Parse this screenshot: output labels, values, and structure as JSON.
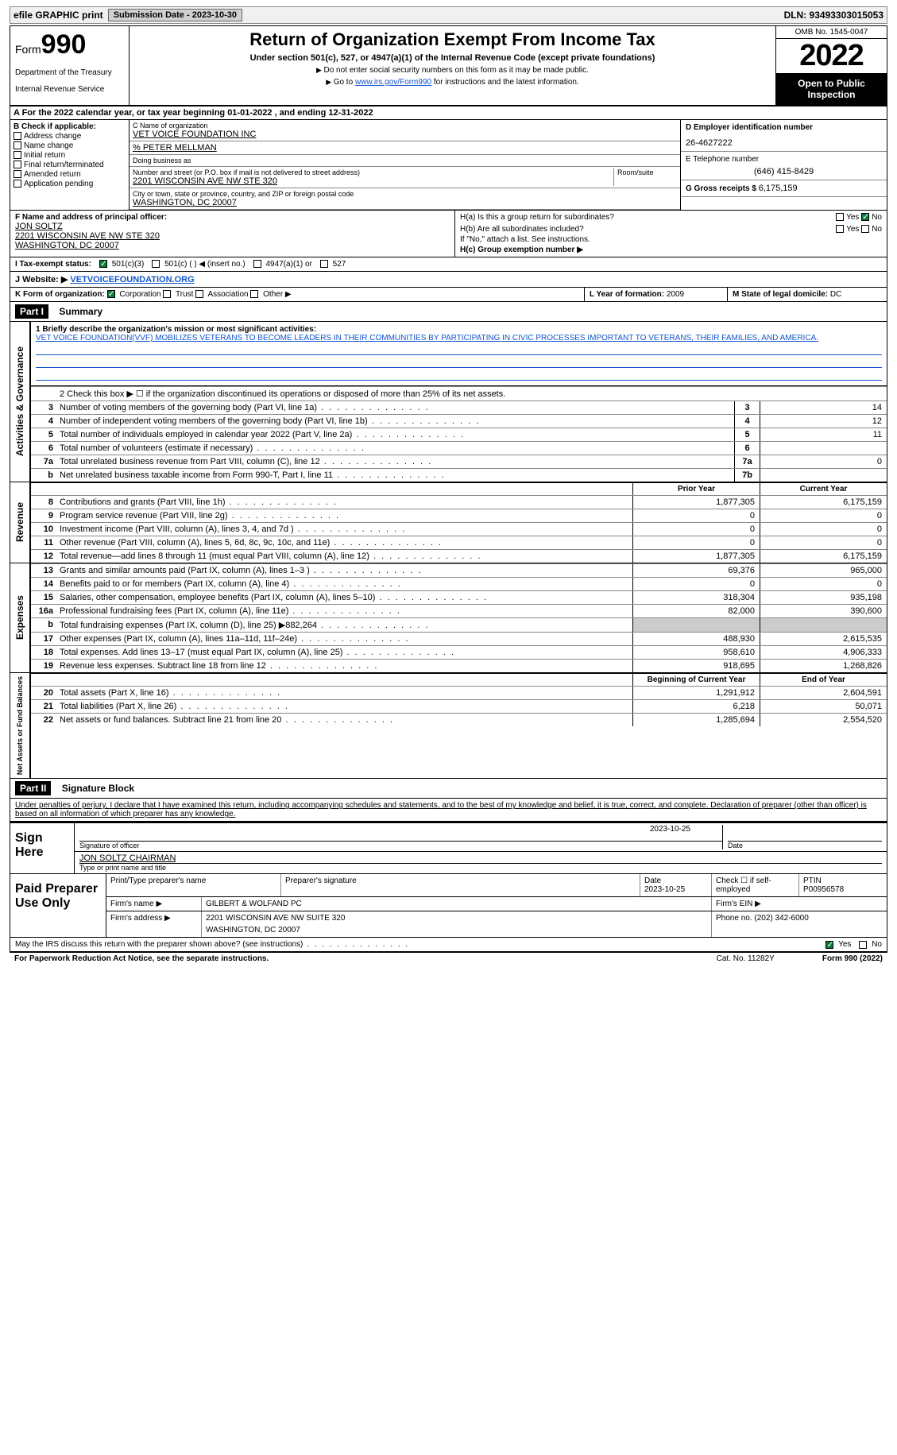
{
  "topbar": {
    "efile": "efile GRAPHIC print",
    "subdate_lbl": "Submission Date - 2023-10-30",
    "dln": "DLN: 93493303015053"
  },
  "header": {
    "form": "Form",
    "formnum": "990",
    "dept": "Department of the Treasury",
    "irs": "Internal Revenue Service",
    "title": "Return of Organization Exempt From Income Tax",
    "sub1": "Under section 501(c), 527, or 4947(a)(1) of the Internal Revenue Code (except private foundations)",
    "sub2": "Do not enter social security numbers on this form as it may be made public.",
    "sub3": "Go to",
    "sub3_link": "www.irs.gov/Form990",
    "sub3_rest": "for instructions and the latest information.",
    "omb": "OMB No. 1545-0047",
    "year": "2022",
    "open": "Open to Public Inspection"
  },
  "rowA": "A For the 2022 calendar year, or tax year beginning 01-01-2022   , and ending 12-31-2022",
  "colB": {
    "lbl": "B Check if applicable:",
    "opts": [
      "Address change",
      "Name change",
      "Initial return",
      "Final return/terminated",
      "Amended return",
      "Application pending"
    ]
  },
  "colC": {
    "name_lbl": "C Name of organization",
    "name": "VET VOICE FOUNDATION INC",
    "care": "% PETER MELLMAN",
    "dba_lbl": "Doing business as",
    "addr_lbl": "Number and street (or P.O. box if mail is not delivered to street address)",
    "room_lbl": "Room/suite",
    "addr": "2201 WISCONSIN AVE NW STE 320",
    "city_lbl": "City or town, state or province, country, and ZIP or foreign postal code",
    "city": "WASHINGTON, DC  20007"
  },
  "colD": {
    "ein_lbl": "D Employer identification number",
    "ein": "26-4627222",
    "tel_lbl": "E Telephone number",
    "tel": "(646) 415-8429",
    "gross_lbl": "G Gross receipts $",
    "gross": "6,175,159"
  },
  "rowF": {
    "lbl": "F  Name and address of principal officer:",
    "name": "JON SOLTZ",
    "addr": "2201 WISCONSIN AVE NW STE 320",
    "city": "WASHINGTON, DC  20007"
  },
  "rowH": {
    "ha": "H(a)  Is this a group return for subordinates?",
    "hb": "H(b)  Are all subordinates included?",
    "hb_note": "If \"No,\" attach a list. See instructions.",
    "hc": "H(c)  Group exemption number ▶"
  },
  "rowI": {
    "lbl": "I    Tax-exempt status:",
    "c3": "501(c)(3)",
    "c": "501(c) (  ) ◀ (insert no.)",
    "a1": "4947(a)(1) or",
    "s527": "527"
  },
  "rowJ": {
    "lbl": "J   Website: ▶",
    "val": "VETVOICEFOUNDATION.ORG"
  },
  "rowK": {
    "lbl": "K Form of organization:",
    "opts": [
      "Corporation",
      "Trust",
      "Association",
      "Other ▶"
    ],
    "l_lbl": "L Year of formation:",
    "l_val": "2009",
    "m_lbl": "M State of legal domicile:",
    "m_val": "DC"
  },
  "part1": {
    "hdr": "Part I",
    "title": "Summary",
    "mission_lbl": "1  Briefly describe the organization's mission or most significant activities:",
    "mission": "VET VOICE FOUNDATION(VVF) MOBILIZES VETERANS TO BECOME LEADERS IN THEIR COMMUNITIES BY PARTICIPATING IN CIVIC PROCESSES IMPORTANT TO VETERANS, THEIR FAMILIES, AND AMERICA.",
    "line2": "2   Check this box ▶ ☐  if the organization discontinued its operations or disposed of more than 25% of its net assets.",
    "gov_lines": [
      {
        "n": "3",
        "d": "Number of voting members of the governing body (Part VI, line 1a)",
        "box": "3",
        "v": "14"
      },
      {
        "n": "4",
        "d": "Number of independent voting members of the governing body (Part VI, line 1b)",
        "box": "4",
        "v": "12"
      },
      {
        "n": "5",
        "d": "Total number of individuals employed in calendar year 2022 (Part V, line 2a)",
        "box": "5",
        "v": "11"
      },
      {
        "n": "6",
        "d": "Total number of volunteers (estimate if necessary)",
        "box": "6",
        "v": ""
      },
      {
        "n": "7a",
        "d": "Total unrelated business revenue from Part VIII, column (C), line 12",
        "box": "7a",
        "v": "0"
      },
      {
        "n": "b",
        "d": "Net unrelated business taxable income from Form 990-T, Part I, line 11",
        "box": "7b",
        "v": ""
      }
    ],
    "rev_hdr": {
      "py": "Prior Year",
      "cy": "Current Year"
    },
    "rev_lines": [
      {
        "n": "8",
        "d": "Contributions and grants (Part VIII, line 1h)",
        "py": "1,877,305",
        "cy": "6,175,159"
      },
      {
        "n": "9",
        "d": "Program service revenue (Part VIII, line 2g)",
        "py": "0",
        "cy": "0"
      },
      {
        "n": "10",
        "d": "Investment income (Part VIII, column (A), lines 3, 4, and 7d )",
        "py": "0",
        "cy": "0"
      },
      {
        "n": "11",
        "d": "Other revenue (Part VIII, column (A), lines 5, 6d, 8c, 9c, 10c, and 11e)",
        "py": "0",
        "cy": "0"
      },
      {
        "n": "12",
        "d": "Total revenue—add lines 8 through 11 (must equal Part VIII, column (A), line 12)",
        "py": "1,877,305",
        "cy": "6,175,159"
      }
    ],
    "exp_lines": [
      {
        "n": "13",
        "d": "Grants and similar amounts paid (Part IX, column (A), lines 1–3 )",
        "py": "69,376",
        "cy": "965,000"
      },
      {
        "n": "14",
        "d": "Benefits paid to or for members (Part IX, column (A), line 4)",
        "py": "0",
        "cy": "0"
      },
      {
        "n": "15",
        "d": "Salaries, other compensation, employee benefits (Part IX, column (A), lines 5–10)",
        "py": "318,304",
        "cy": "935,198"
      },
      {
        "n": "16a",
        "d": "Professional fundraising fees (Part IX, column (A), line 11e)",
        "py": "82,000",
        "cy": "390,600"
      },
      {
        "n": "b",
        "d": "Total fundraising expenses (Part IX, column (D), line 25) ▶882,264",
        "py": "",
        "cy": "",
        "shade": true
      },
      {
        "n": "17",
        "d": "Other expenses (Part IX, column (A), lines 11a–11d, 11f–24e)",
        "py": "488,930",
        "cy": "2,615,535"
      },
      {
        "n": "18",
        "d": "Total expenses. Add lines 13–17 (must equal Part IX, column (A), line 25)",
        "py": "958,610",
        "cy": "4,906,333"
      },
      {
        "n": "19",
        "d": "Revenue less expenses. Subtract line 18 from line 12",
        "py": "918,695",
        "cy": "1,268,826"
      }
    ],
    "net_hdr": {
      "py": "Beginning of Current Year",
      "cy": "End of Year"
    },
    "net_lines": [
      {
        "n": "20",
        "d": "Total assets (Part X, line 16)",
        "py": "1,291,912",
        "cy": "2,604,591"
      },
      {
        "n": "21",
        "d": "Total liabilities (Part X, line 26)",
        "py": "6,218",
        "cy": "50,071"
      },
      {
        "n": "22",
        "d": "Net assets or fund balances. Subtract line 21 from line 20",
        "py": "1,285,694",
        "cy": "2,554,520"
      }
    ],
    "vlabels": {
      "gov": "Activities & Governance",
      "rev": "Revenue",
      "exp": "Expenses",
      "net": "Net Assets or Fund Balances"
    }
  },
  "part2": {
    "hdr": "Part II",
    "title": "Signature Block",
    "penalty": "Under penalties of perjury, I declare that I have examined this return, including accompanying schedules and statements, and to the best of my knowledge and belief, it is true, correct, and complete. Declaration of preparer (other than officer) is based on all information of which preparer has any knowledge.",
    "sign_here": "Sign Here",
    "sig_date": "2023-10-25",
    "sig_lbl": "Signature of officer",
    "date_lbl": "Date",
    "name": "JON SOLTZ  CHAIRMAN",
    "name_lbl": "Type or print name and title",
    "paid": "Paid Preparer Use Only",
    "prep_name_lbl": "Print/Type preparer's name",
    "prep_sig_lbl": "Preparer's signature",
    "prep_date": "2023-10-25",
    "prep_date_lbl": "Date",
    "self_lbl": "Check ☐ if self-employed",
    "ptin_lbl": "PTIN",
    "ptin": "P00956578",
    "firm_lbl": "Firm's name   ▶",
    "firm": "GILBERT & WOLFAND PC",
    "firm_ein_lbl": "Firm's EIN ▶",
    "firm_addr_lbl": "Firm's address ▶",
    "firm_addr": "2201 WISCONSIN AVE NW SUITE 320",
    "firm_city": "WASHINGTON, DC  20007",
    "firm_phone_lbl": "Phone no.",
    "firm_phone": "(202) 342-6000",
    "discuss": "May the IRS discuss this return with the preparer shown above? (see instructions)",
    "yes": "Yes",
    "no": "No"
  },
  "footer": {
    "pra": "For Paperwork Reduction Act Notice, see the separate instructions.",
    "cat": "Cat. No. 11282Y",
    "form": "Form 990 (2022)"
  },
  "colors": {
    "link": "#1155cc",
    "check_green": "#0a7a3a",
    "shade": "#cccccc"
  }
}
